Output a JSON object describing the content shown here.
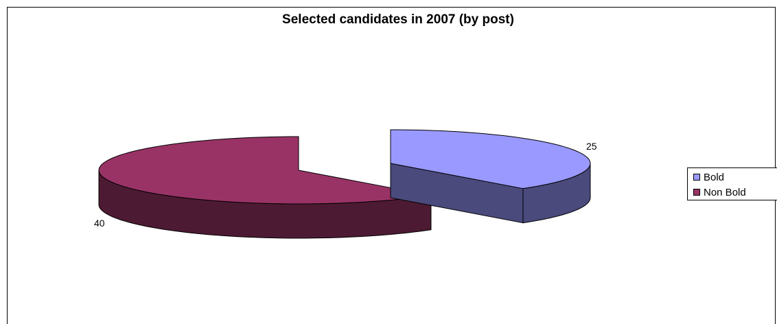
{
  "chart_data": {
    "type": "pie",
    "title": "Selected candidates in 2007 (by post)",
    "slices": [
      {
        "label": "Bold",
        "value": 25,
        "color": "#9999FF",
        "side_color": "#4A4A7D"
      },
      {
        "label": "Non Bold",
        "value": 40,
        "color": "#993366",
        "side_color": "#4D1A33"
      }
    ],
    "legend_placement": "right",
    "style": "3d-exploded"
  }
}
